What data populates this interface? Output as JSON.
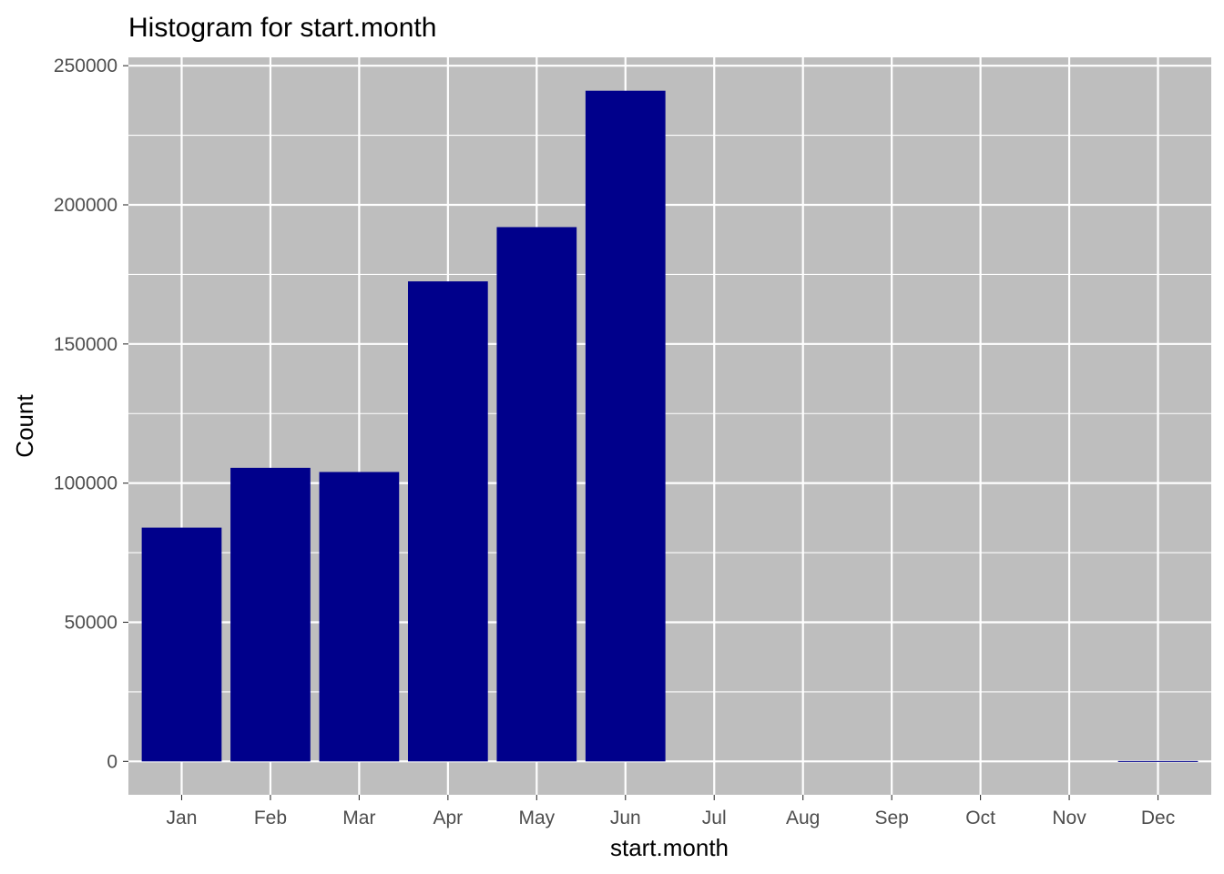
{
  "chart_data": {
    "type": "bar",
    "title": "Histogram for start.month",
    "xlabel": "start.month",
    "ylabel": "Count",
    "categories": [
      "Jan",
      "Feb",
      "Mar",
      "Apr",
      "May",
      "Jun",
      "Jul",
      "Aug",
      "Sep",
      "Oct",
      "Nov",
      "Dec"
    ],
    "values": [
      84000,
      105500,
      104000,
      172500,
      192000,
      241000,
      0,
      0,
      0,
      0,
      0,
      150
    ],
    "ylim": [
      -12000,
      253000
    ],
    "yticks": [
      0,
      50000,
      100000,
      150000,
      200000,
      250000
    ],
    "ytick_labels": [
      "0",
      "50000",
      "100000",
      "150000",
      "200000",
      "250000"
    ],
    "grid": true,
    "legend": "none",
    "colors": {
      "bar": "#00008b",
      "panel": "#bebebe",
      "grid": "#ffffff",
      "tick_text": "#4d4d4d"
    }
  }
}
